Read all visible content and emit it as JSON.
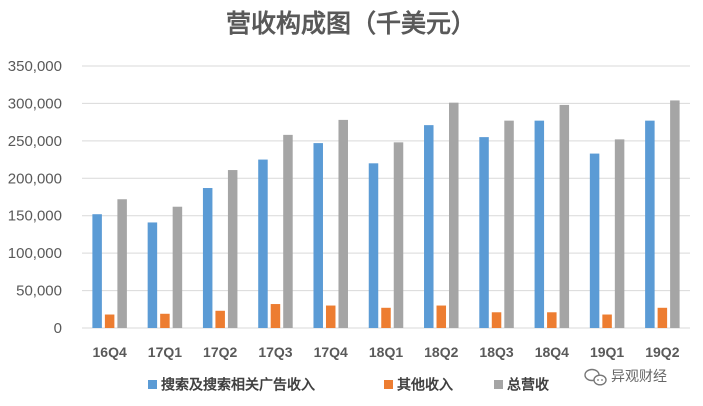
{
  "chart_data": {
    "type": "bar",
    "title": "营收构成图（千美元）",
    "categories": [
      "16Q4",
      "17Q1",
      "17Q2",
      "17Q3",
      "17Q4",
      "18Q1",
      "18Q2",
      "18Q3",
      "18Q4",
      "19Q1",
      "19Q2"
    ],
    "series": [
      {
        "name": "搜索及搜索相关广告收入",
        "color": "#5b9bd5",
        "values": [
          152000,
          141000,
          187000,
          225000,
          247000,
          220000,
          271000,
          255000,
          277000,
          233000,
          277000
        ]
      },
      {
        "name": "其他收入",
        "color": "#ed7d31",
        "values": [
          18000,
          19000,
          23000,
          32000,
          30000,
          27000,
          30000,
          21000,
          21000,
          18000,
          27000
        ]
      },
      {
        "name": "总营收",
        "color": "#a5a5a5",
        "values": [
          172000,
          162000,
          211000,
          258000,
          278000,
          248000,
          301000,
          277000,
          298000,
          252000,
          304000
        ]
      }
    ],
    "ylim": [
      0,
      350000
    ],
    "yticks": [
      0,
      50000,
      100000,
      150000,
      200000,
      250000,
      300000,
      350000
    ],
    "ytick_labels": [
      "0",
      "50,000",
      "100,000",
      "150,000",
      "200,000",
      "250,000",
      "300,000",
      "350,000"
    ],
    "grid": true,
    "legend_position": "bottom",
    "xlabel": "",
    "ylabel": ""
  },
  "watermark": {
    "text": "异观财经",
    "icon": "wechat-bubble-icon"
  }
}
